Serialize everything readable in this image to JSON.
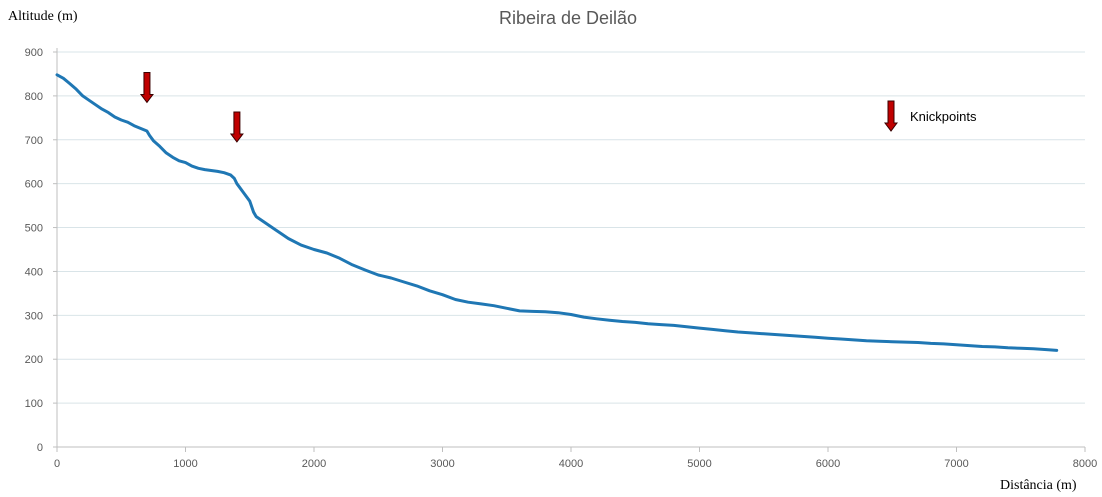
{
  "chart_data": {
    "type": "line",
    "title": "Ribeira de Deilão",
    "xlabel": "Distância (m)",
    "ylabel": "Altitude (m)",
    "xlim": [
      0,
      8000
    ],
    "ylim": [
      0,
      900
    ],
    "xticks": [
      0,
      1000,
      2000,
      3000,
      4000,
      5000,
      6000,
      7000,
      8000
    ],
    "yticks": [
      0,
      100,
      200,
      300,
      400,
      500,
      600,
      700,
      800,
      900
    ],
    "xtick_labels": [
      "0",
      "1000",
      "2000",
      "3000",
      "4000",
      "5000",
      "6000",
      "7000",
      "8000"
    ],
    "ytick_labels": [
      "0",
      "100",
      "200",
      "300",
      "400",
      "500",
      "600",
      "700",
      "800",
      "900"
    ],
    "grid": "horizontal",
    "series_color": "#1f77b4",
    "marker_color": "#c00000",
    "legend": {
      "label": "Knickpoints",
      "placement": "top-right"
    },
    "series": [
      {
        "x": [
          0,
          50,
          100,
          150,
          200,
          250,
          300,
          350,
          400,
          450,
          500,
          550,
          600,
          650,
          700,
          720,
          750,
          800,
          850,
          900,
          950,
          1000,
          1050,
          1100,
          1150,
          1200,
          1250,
          1300,
          1350,
          1380,
          1400,
          1420,
          1450,
          1500,
          1530,
          1550,
          1600,
          1650,
          1700,
          1750,
          1800,
          1900,
          2000,
          2100,
          2200,
          2300,
          2400,
          2500,
          2600,
          2700,
          2800,
          2900,
          3000,
          3100,
          3200,
          3300,
          3400,
          3500,
          3600,
          3700,
          3800,
          3900,
          4000,
          4100,
          4200,
          4300,
          4400,
          4500,
          4600,
          4700,
          4800,
          4900,
          5000,
          5100,
          5200,
          5300,
          5400,
          5500,
          5600,
          5700,
          5800,
          5900,
          6000,
          6100,
          6200,
          6300,
          6400,
          6500,
          6600,
          6700,
          6800,
          6900,
          7000,
          7100,
          7200,
          7300,
          7400,
          7500,
          7600,
          7700,
          7780
        ],
        "values": [
          848,
          840,
          828,
          815,
          800,
          790,
          780,
          770,
          762,
          752,
          745,
          740,
          732,
          726,
          720,
          710,
          698,
          685,
          670,
          660,
          652,
          648,
          640,
          635,
          632,
          630,
          628,
          625,
          620,
          612,
          600,
          592,
          580,
          560,
          535,
          525,
          515,
          505,
          495,
          485,
          475,
          460,
          450,
          442,
          430,
          415,
          403,
          392,
          385,
          376,
          367,
          356,
          347,
          336,
          330,
          326,
          322,
          316,
          310,
          309,
          308,
          306,
          302,
          296,
          292,
          289,
          286,
          284,
          281,
          279,
          277,
          274,
          271,
          268,
          265,
          262,
          260,
          258,
          256,
          254,
          252,
          250,
          248,
          246,
          244,
          242,
          241,
          240,
          239,
          238,
          236,
          235,
          233,
          231,
          229,
          228,
          226,
          225,
          224,
          222,
          220
        ]
      }
    ],
    "knickpoints": [
      {
        "x": 700,
        "y": 785
      },
      {
        "x": 1400,
        "y": 695
      }
    ]
  }
}
